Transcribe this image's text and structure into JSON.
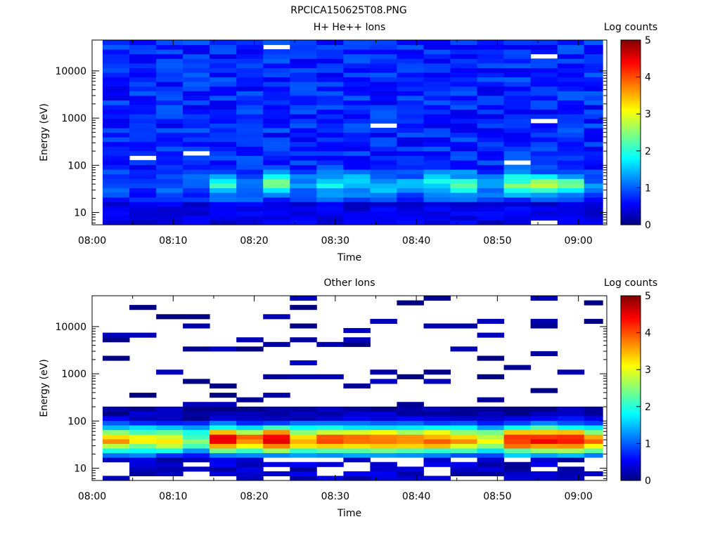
{
  "page_title": "RPCICA150625T08.PNG",
  "chart_data": [
    {
      "type": "heatmap",
      "title": "H+ He++ Ions",
      "xlabel": "Time",
      "ylabel": "Energy (eV)",
      "colorbar_label": "Log counts",
      "x_ticks": [
        "08:00",
        "08:10",
        "08:20",
        "08:30",
        "08:40",
        "08:50",
        "09:00"
      ],
      "y_ticks": [
        "10",
        "100",
        "1000",
        "10000"
      ],
      "colorbar_ticks": [
        "0",
        "1",
        "2",
        "3",
        "4",
        "5"
      ],
      "y_scale": "log",
      "ylim": [
        5.5,
        45000
      ],
      "xlim_minutes_after_0800": [
        0,
        63.5
      ],
      "clim": [
        0,
        5
      ],
      "time_bins": [
        "08:01",
        "08:04",
        "08:08",
        "08:11",
        "08:14",
        "08:17",
        "08:21",
        "08:24",
        "08:27",
        "08:30",
        "08:34",
        "08:37",
        "08:40",
        "08:43",
        "08:47",
        "08:50",
        "08:53",
        "08:57",
        "09:00"
      ],
      "energy_profile": {
        "range_ev": [
          5.5,
          45000
        ],
        "high_energy_log_counts": 0.8,
        "peak_energy_ev": 40,
        "peak_log_counts_by_bin": [
          1.0,
          1.0,
          1.2,
          1.1,
          2.2,
          1.4,
          2.4,
          1.2,
          2.0,
          1.8,
          1.6,
          1.5,
          1.9,
          2.1,
          1.3,
          2.4,
          2.6,
          2.3,
          1.2
        ],
        "lowest_energy_log_counts": 0.3
      }
    },
    {
      "type": "heatmap",
      "title": "Other Ions",
      "xlabel": "Time",
      "ylabel": "Energy (eV)",
      "colorbar_label": "Log counts",
      "x_ticks": [
        "08:00",
        "08:10",
        "08:20",
        "08:30",
        "08:40",
        "08:50",
        "09:00"
      ],
      "y_ticks": [
        "10",
        "100",
        "1000",
        "10000"
      ],
      "colorbar_ticks": [
        "0",
        "1",
        "2",
        "3",
        "4",
        "5"
      ],
      "y_scale": "log",
      "ylim": [
        5.5,
        45000
      ],
      "xlim_minutes_after_0800": [
        0,
        63.5
      ],
      "clim": [
        0,
        5
      ],
      "time_bins": [
        "08:01",
        "08:04",
        "08:08",
        "08:11",
        "08:14",
        "08:17",
        "08:21",
        "08:24",
        "08:27",
        "08:30",
        "08:34",
        "08:37",
        "08:40",
        "08:43",
        "08:47",
        "08:50",
        "08:53",
        "08:57",
        "09:00"
      ],
      "energy_profile": {
        "range_ev": [
          5.5,
          45000
        ],
        "high_energy_log_counts": 0.1,
        "peak_energy_ev": 40,
        "peak_log_counts_by_bin": [
          3.5,
          3.0,
          3.2,
          2.3,
          4.4,
          3.8,
          4.5,
          3.6,
          3.9,
          3.7,
          3.8,
          3.6,
          3.8,
          3.6,
          3.0,
          4.2,
          4.4,
          4.2,
          3.6
        ],
        "lowest_energy_log_counts": 0.1
      }
    }
  ]
}
